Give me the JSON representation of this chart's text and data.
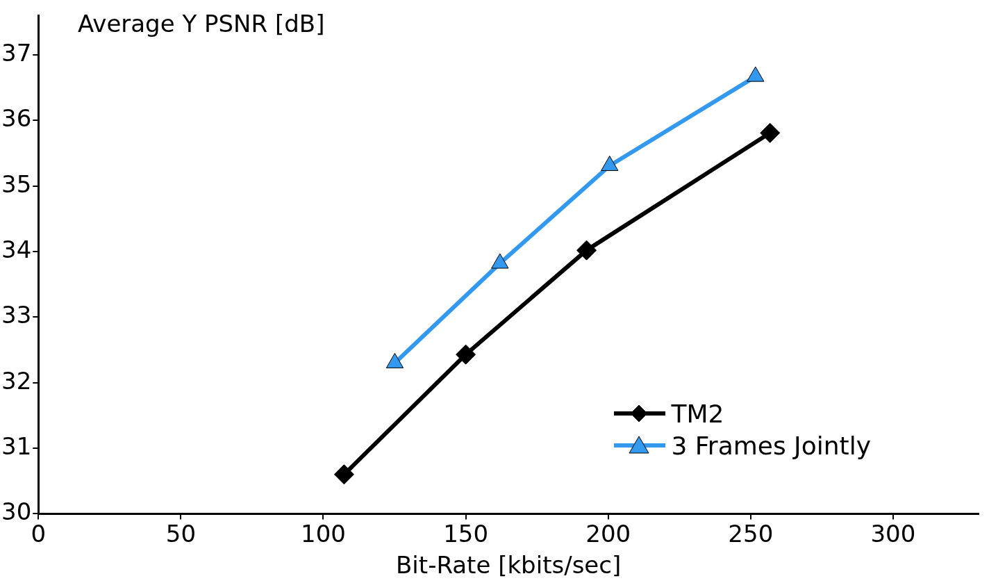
{
  "chart_data": {
    "type": "line",
    "xlabel": "Bit-Rate [kbits/sec]",
    "ylabel": "Average Y PSNR [dB]",
    "xlim": [
      0,
      330
    ],
    "xticks": [
      0,
      50,
      100,
      150,
      200,
      250,
      300
    ],
    "ylim": [
      30,
      37.6
    ],
    "yticks": [
      30,
      31,
      32,
      33,
      34,
      35,
      36,
      37
    ],
    "grid": false,
    "legend": "bottom right",
    "line_style": "solid",
    "series": [
      {
        "name": "TM2",
        "color": "#000000",
        "marker": "diamond",
        "x": [
          107.3,
          150,
          192.4,
          256.8
        ],
        "values": [
          30.6,
          32.43,
          34.02,
          35.81
        ]
      },
      {
        "name": "3 Frames Jointly",
        "color": "#3399ee",
        "marker": "triangle",
        "x": [
          125.1,
          162,
          200.5,
          251.7
        ],
        "values": [
          32.3,
          33.82,
          35.31,
          36.67
        ]
      }
    ]
  }
}
